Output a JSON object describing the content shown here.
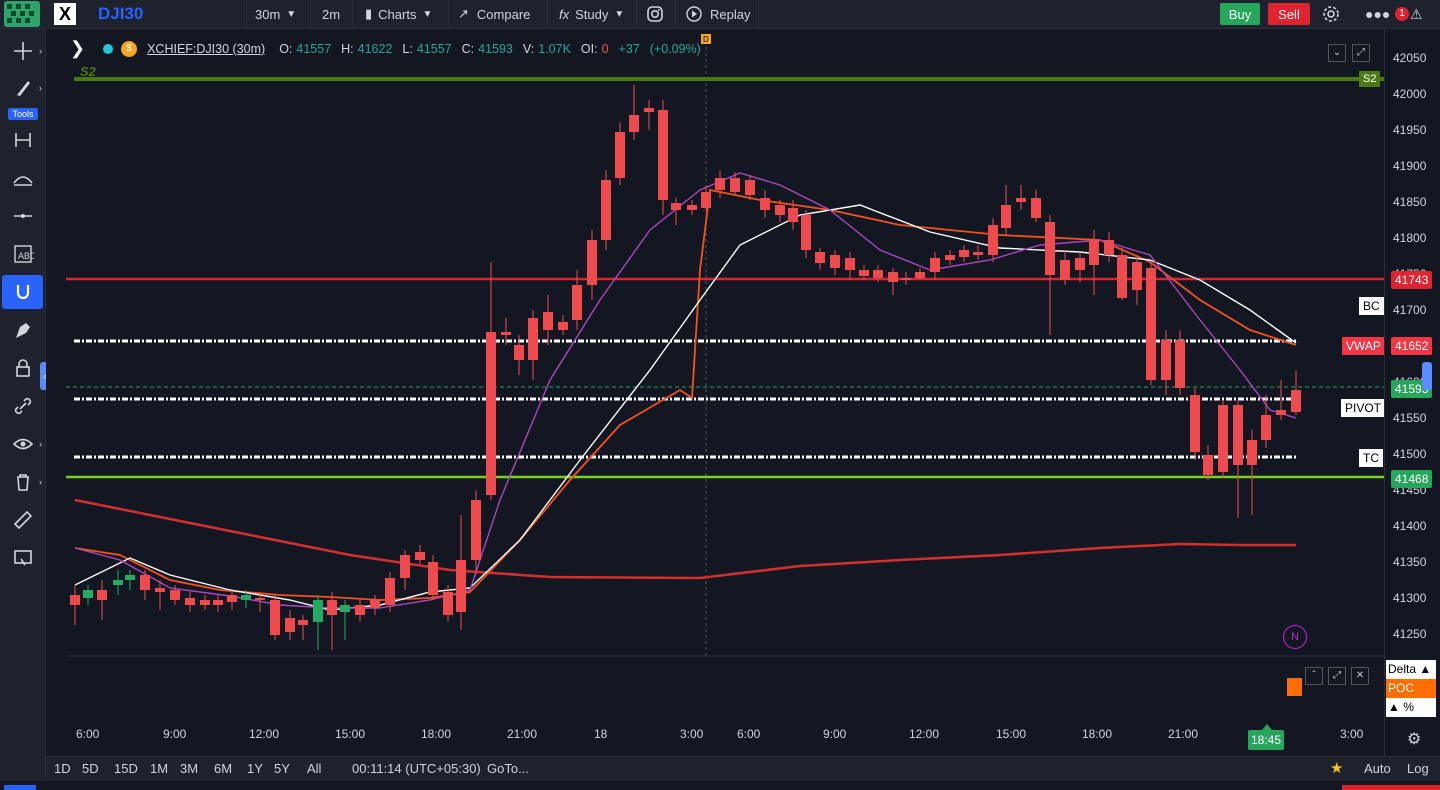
{
  "toolbar": {
    "symbol": "DJI30",
    "interval": "30m",
    "interval2": "2m",
    "charts_label": "Charts",
    "compare_label": "Compare",
    "study_label": "Study",
    "replay_label": "Replay",
    "buy_label": "Buy",
    "sell_label": "Sell",
    "alert_count": "1"
  },
  "leftbar": {
    "tools_label": "Tools"
  },
  "legend": {
    "name": "XCHIEF:DJI30 (30m)",
    "o_label": "O:",
    "o": "41557",
    "h_label": "H:",
    "h": "41622",
    "l_label": "L:",
    "l": "41557",
    "c_label": "C:",
    "c": "41593",
    "v_label": "V:",
    "v": "1.07K",
    "oi_label": "OI:",
    "oi": "0",
    "chg": "+37",
    "chg_pct": "(+0.09%)"
  },
  "chart_data": {
    "type": "candlestick",
    "y_ticks": [
      42050,
      42000,
      41950,
      41900,
      41850,
      41800,
      41750,
      41700,
      41650,
      41600,
      41550,
      41500,
      41450,
      41400,
      41350,
      41300,
      41250
    ],
    "x_ticks": [
      "6:00",
      "9:00",
      "12:00",
      "15:00",
      "18:00",
      "21:00",
      "18",
      "3:00",
      "6:00",
      "9:00",
      "12:00",
      "15:00",
      "18:00",
      "21:00",
      "3:00"
    ],
    "levels": [
      {
        "name": "S2",
        "color": "#4a7a12"
      },
      {
        "name": "BC",
        "color": "#ffffff"
      },
      {
        "name": "PIVOT",
        "color": "#ffffff"
      },
      {
        "name": "TC",
        "color": "#ffffff"
      }
    ],
    "price_tags": [
      {
        "label": "S2",
        "color": "#4a7a12"
      },
      {
        "label": "41743",
        "color": "#e0242f"
      },
      {
        "label": "41652",
        "color": "#f23645"
      },
      {
        "label": "41593",
        "color": "#26a65b"
      },
      {
        "label": "41468",
        "color": "#26a65b"
      }
    ],
    "vwap_label": "VWAP",
    "cursor_time": "18:45",
    "marker_n": "N"
  },
  "panel": {
    "delta_label": "Delta ▲",
    "poc_label": "POC",
    "pct_label": "▲ %"
  },
  "bottombar": {
    "ranges": [
      "1D",
      "5D",
      "15D",
      "1M",
      "3M",
      "6M",
      "1Y",
      "5Y",
      "All"
    ],
    "clock": "00:11:14 (UTC+05:30)",
    "goto": "GoTo...",
    "auto": "Auto",
    "log": "Log"
  }
}
